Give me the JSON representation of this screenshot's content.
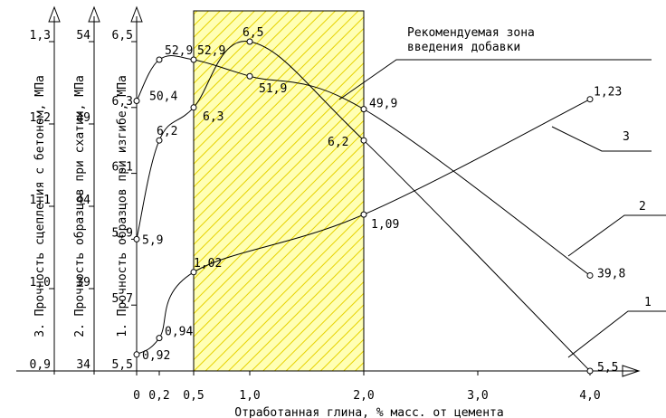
{
  "chart_data": {
    "type": "line",
    "xlabel": "Отработанная глина, % масс. от цемента",
    "x_ticks": [
      "0",
      "0,2",
      "0,5",
      "1,0",
      "2,0",
      "3,0",
      "4,0"
    ],
    "x_tick_values": [
      0,
      0.2,
      0.5,
      1.0,
      2.0,
      3.0,
      4.0
    ],
    "xlim": [
      0,
      4.3
    ],
    "annotation": "Рекомендуемая зона введения добавки",
    "zone": [
      0.5,
      2.0
    ],
    "axes": [
      {
        "id": "bond",
        "label": "3. Прочность сцепления с бетоном, МПа",
        "ticks": [
          "0,9",
          "1,0",
          "1,1",
          "1,2",
          "1,3"
        ],
        "tick_values": [
          0.9,
          1.0,
          1.1,
          1.2,
          1.3
        ],
        "ylim": [
          0.9,
          1.35
        ]
      },
      {
        "id": "compress",
        "label": "2. Прочность образцов при схатии, МПа",
        "ticks": [
          "34",
          "39",
          "44",
          "49",
          "54"
        ],
        "tick_values": [
          34,
          39,
          44,
          49,
          54
        ],
        "ylim": [
          34,
          56.5
        ]
      },
      {
        "id": "bend",
        "label": "1. Прочность образцов при изгибе, МПа",
        "ticks": [
          "5,5",
          "5,7",
          "5,9",
          "6,1",
          "6,3",
          "6,5"
        ],
        "tick_values": [
          5.5,
          5.7,
          5.9,
          6.1,
          6.3,
          6.5
        ],
        "ylim": [
          5.5,
          6.6
        ]
      }
    ],
    "series": [
      {
        "name": "1",
        "axis": "bend",
        "points": [
          {
            "x": 0,
            "y": 5.9,
            "label": "5,9"
          },
          {
            "x": 0.2,
            "y": 6.2,
            "label": "6,2"
          },
          {
            "x": 0.5,
            "y": 6.3,
            "label": "6,3"
          },
          {
            "x": 1.0,
            "y": 6.5,
            "label": "6,5"
          },
          {
            "x": 2.0,
            "y": 6.2,
            "label": "6,2"
          },
          {
            "x": 4.0,
            "y": 5.5,
            "label": "5,5"
          }
        ]
      },
      {
        "name": "2",
        "axis": "compress",
        "points": [
          {
            "x": 0,
            "y": 50.4,
            "label": "50,4"
          },
          {
            "x": 0.2,
            "y": 52.9,
            "label": "52,9"
          },
          {
            "x": 0.5,
            "y": 52.9,
            "label": "52,9"
          },
          {
            "x": 1.0,
            "y": 51.9,
            "label": "51,9"
          },
          {
            "x": 2.0,
            "y": 49.9,
            "label": "49,9"
          },
          {
            "x": 4.0,
            "y": 39.8,
            "label": "39,8"
          }
        ]
      },
      {
        "name": "3",
        "axis": "bond",
        "points": [
          {
            "x": 0,
            "y": 0.92,
            "label": "0,92"
          },
          {
            "x": 0.2,
            "y": 0.94,
            "label": "0,94"
          },
          {
            "x": 0.5,
            "y": 1.02,
            "label": "1,02"
          },
          {
            "x": 2.0,
            "y": 1.09,
            "label": "1,09"
          },
          {
            "x": 4.0,
            "y": 1.23,
            "label": "1,23"
          }
        ]
      }
    ]
  }
}
